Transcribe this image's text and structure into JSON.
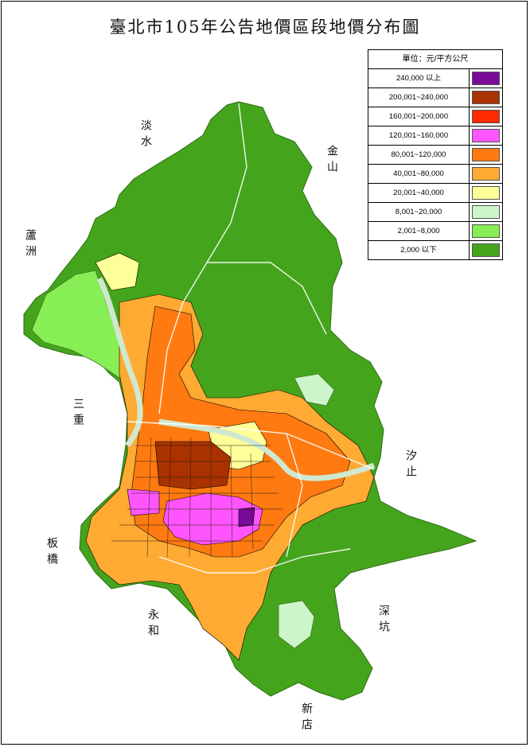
{
  "title": "臺北市105年公告地價區段地價分布圖",
  "legend": {
    "header": "單位：元/平方公尺",
    "items": [
      {
        "label": "240,000 以上",
        "color": "#7a0a9a"
      },
      {
        "label": "200,001~240,000",
        "color": "#a83200"
      },
      {
        "label": "160,001~200,000",
        "color": "#ff2a00"
      },
      {
        "label": "120,001~160,000",
        "color": "#ff55ff"
      },
      {
        "label": "80,001~120,000",
        "color": "#ff7a10"
      },
      {
        "label": "40,001~80,000",
        "color": "#ffaa33"
      },
      {
        "label": "20,001~40,000",
        "color": "#ffff99"
      },
      {
        "label": "8,001~20,000",
        "color": "#ccf5cc"
      },
      {
        "label": "2,001~8,000",
        "color": "#88ee55"
      },
      {
        "label": "2,000 以下",
        "color": "#44a51c"
      }
    ]
  },
  "places": {
    "danshui": "淡水",
    "jinshan": "金山",
    "luzhou": "蘆洲",
    "sanchong": "三重",
    "xizhi": "汐止",
    "banqiao": "板橋",
    "yonghe": "永和",
    "shenkeng": "深坑",
    "xindian": "新店"
  }
}
